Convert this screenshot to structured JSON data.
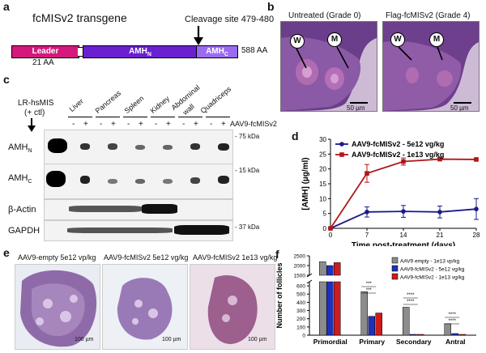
{
  "panels": {
    "a": "a",
    "b": "b",
    "c": "c",
    "d": "d",
    "e": "e",
    "f": "f"
  },
  "panel_a": {
    "title": "fcMISv2 transgene",
    "cleavage": "Cleavage site 479-480",
    "leader": "Leader",
    "amh_n": "AMH",
    "amh_n_sub": "N",
    "amh_c": "AMH",
    "amh_c_sub": "C",
    "len_leader": "21 AA",
    "len_total": "588 AA",
    "colors": {
      "leader": "#d4187c",
      "amh_n": "#6a1fd1",
      "amh_c": "#9a6bf0"
    }
  },
  "panel_b": {
    "untreated_label": "Untreated (Grade 0)",
    "treated_label": "Flag-fcMISv2 (Grade 4)",
    "marker_w": "W",
    "marker_m": "M",
    "scale1": "50 µm",
    "scale2": "50 µm"
  },
  "panel_c": {
    "ctl_line1": "LR-hsMIS",
    "ctl_line2": "(+ ctl)",
    "tissues": [
      "Liver",
      "Pancreas",
      "Spleen",
      "Kidney",
      "Abdominal",
      "Quadriceps"
    ],
    "tissue_line2": "wall",
    "minus": "-",
    "plus": "+",
    "treatment": "AAV9-fcMISv2",
    "rows": [
      {
        "name": "AMH",
        "sub": "N"
      },
      {
        "name": "AMH",
        "sub": "C"
      },
      {
        "name": "β-Actin",
        "sub": ""
      },
      {
        "name": "GAPDH",
        "sub": ""
      }
    ],
    "kda_75": "- 75 kDa",
    "kda_15": "- 15 kDa",
    "kda_37": "- 37 kDa"
  },
  "panel_d": {
    "ylabel": "[AMH] (µg/ml)",
    "xlabel": "Time post-treatment (days)"
  },
  "chart_data": [
    {
      "type": "line",
      "xlabel": "Time post-treatment (days)",
      "ylabel": "[AMH] (µg/ml)",
      "x": [
        0,
        7,
        14,
        21,
        28
      ],
      "xlim": [
        0,
        28
      ],
      "ylim": [
        0,
        30
      ],
      "xticks": [
        0,
        7,
        14,
        21,
        28
      ],
      "yticks": [
        0,
        5,
        10,
        15,
        20,
        25,
        30
      ],
      "legend": "top-left",
      "series": [
        {
          "name": "AAV9-fcMISv2 - 5e12 vg/kg",
          "color": "#1a1a8c",
          "marker": "circle",
          "values": [
            0,
            5.5,
            5.7,
            5.5,
            6.5
          ],
          "err": [
            0,
            1.7,
            2.0,
            2.0,
            3.5
          ]
        },
        {
          "name": "AAV9-fcMISv2 - 1e13 vg/kg",
          "color": "#b01818",
          "marker": "square",
          "values": [
            0,
            18.5,
            22.5,
            23.3,
            23.2
          ],
          "err": [
            0,
            3.0,
            1.2,
            0.3,
            0.3
          ]
        }
      ]
    },
    {
      "type": "bar",
      "ylabel": "Number of follicles",
      "categories": [
        "Primordial",
        "Primary",
        "Secondary",
        "Antral"
      ],
      "ylim": [
        0,
        2500
      ],
      "axis_break": [
        650,
        1500
      ],
      "yticks": [
        0,
        100,
        200,
        300,
        400,
        500,
        600,
        1500,
        2000,
        2500
      ],
      "legend": "top-right",
      "series": [
        {
          "name": "AAV9 empty - 1e13 vp/kg",
          "color": "#8c8c8c",
          "values": [
            2200,
            530,
            340,
            140
          ]
        },
        {
          "name": "AAV9-fcMISv2 - 5e12 vg/kg",
          "color": "#2030b8",
          "values": [
            2000,
            230,
            10,
            20
          ]
        },
        {
          "name": "AAV9-fcMISv2 - 1e13 vg/kg",
          "color": "#cc1c1c",
          "values": [
            2150,
            270,
            10,
            10
          ]
        }
      ],
      "significance": [
        "***",
        "***",
        "****",
        "****",
        "****",
        "****"
      ]
    }
  ],
  "panel_e": {
    "label1": "AAV9-empty 5e12 vp/kg",
    "label2": "AAV9-fcMISv2 5e12 vg/kg",
    "label3": "AAV9-fcMISv2 1e13 vg/kg",
    "scale": "100 µm"
  }
}
